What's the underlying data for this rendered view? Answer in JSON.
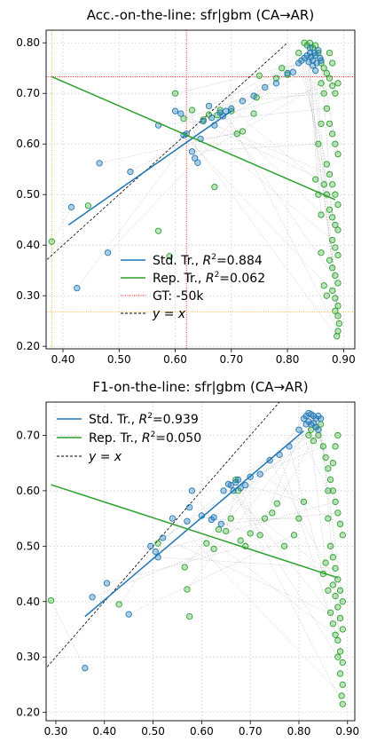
{
  "chart_data": [
    {
      "type": "scatter",
      "title": "Acc.-on-the-line: sfr|gbm  (CA→AR)",
      "xlim": [
        0.37,
        0.92
      ],
      "ylim": [
        0.195,
        0.825
      ],
      "xticks": [
        0.4,
        0.5,
        0.6,
        0.7,
        0.8,
        0.9
      ],
      "yticks": [
        0.2,
        0.3,
        0.4,
        0.5,
        0.6,
        0.7,
        0.8
      ],
      "xtick_labels": [
        "0.40",
        "0.50",
        "0.60",
        "0.70",
        "0.80",
        "0.90"
      ],
      "ytick_labels": [
        "0.20",
        "0.30",
        "0.40",
        "0.50",
        "0.60",
        "0.70",
        "0.80"
      ],
      "grid": true,
      "legend_position": "lower-center",
      "legend": [
        {
          "kind": "line",
          "color": "#1f77b4",
          "pre": "Std. Tr., ",
          "r": "R",
          "sup": "2",
          "post": "=0.884"
        },
        {
          "kind": "line",
          "color": "#2ca02c",
          "pre": "Rep. Tr., ",
          "r": "R",
          "sup": "2",
          "post": "=0.062"
        },
        {
          "kind": "dotted",
          "color": "#ff0000",
          "pre": "GT: -50k"
        },
        {
          "kind": "dashed",
          "color": "#000000",
          "pre": "y = x",
          "math": true
        }
      ],
      "fit_lines": [
        {
          "name": "Std. Tr.",
          "color": "#1f77b4",
          "x": [
            0.41,
            0.7
          ],
          "y": [
            0.44,
            0.665
          ]
        },
        {
          "name": "Rep. Tr.",
          "color": "#2ca02c",
          "x": [
            0.38,
            0.885
          ],
          "y": [
            0.733,
            0.49
          ]
        }
      ],
      "identity": {
        "color": "#000000",
        "from": 0.36,
        "to": 0.8
      },
      "gt_lines": [
        {
          "orientation": "v",
          "value": 0.62,
          "color": "#ff0000"
        },
        {
          "orientation": "h",
          "value": 0.733,
          "color": "#ff0000"
        },
        {
          "orientation": "v",
          "value": 0.38,
          "color": "#ffa500"
        },
        {
          "orientation": "h",
          "value": 0.268,
          "color": "#ffa500"
        }
      ],
      "std_points": [
        [
          0.415,
          0.475
        ],
        [
          0.425,
          0.315
        ],
        [
          0.465,
          0.562
        ],
        [
          0.48,
          0.385
        ],
        [
          0.52,
          0.545
        ],
        [
          0.57,
          0.637
        ],
        [
          0.6,
          0.665
        ],
        [
          0.61,
          0.66
        ],
        [
          0.615,
          0.617
        ],
        [
          0.62,
          0.62
        ],
        [
          0.63,
          0.585
        ],
        [
          0.635,
          0.572
        ],
        [
          0.64,
          0.563
        ],
        [
          0.645,
          0.61
        ],
        [
          0.65,
          0.645
        ],
        [
          0.66,
          0.675
        ],
        [
          0.665,
          0.652
        ],
        [
          0.67,
          0.637
        ],
        [
          0.68,
          0.662
        ],
        [
          0.685,
          0.655
        ],
        [
          0.69,
          0.665
        ],
        [
          0.7,
          0.67
        ],
        [
          0.72,
          0.685
        ],
        [
          0.74,
          0.695
        ],
        [
          0.76,
          0.712
        ],
        [
          0.78,
          0.72
        ],
        [
          0.8,
          0.74
        ],
        [
          0.81,
          0.742
        ],
        [
          0.82,
          0.76
        ],
        [
          0.825,
          0.765
        ],
        [
          0.83,
          0.77
        ],
        [
          0.835,
          0.775
        ],
        [
          0.84,
          0.78
        ],
        [
          0.842,
          0.772
        ],
        [
          0.845,
          0.765
        ],
        [
          0.848,
          0.78
        ],
        [
          0.85,
          0.775
        ],
        [
          0.852,
          0.76
        ],
        [
          0.855,
          0.785
        ],
        [
          0.858,
          0.77
        ],
        [
          0.86,
          0.765
        ],
        [
          0.845,
          0.755
        ],
        [
          0.85,
          0.745
        ],
        [
          0.838,
          0.762
        ],
        [
          0.84,
          0.79
        ]
      ],
      "rep_points": [
        [
          0.38,
          0.407
        ],
        [
          0.445,
          0.478
        ],
        [
          0.57,
          0.428
        ],
        [
          0.59,
          0.378
        ],
        [
          0.6,
          0.7
        ],
        [
          0.615,
          0.65
        ],
        [
          0.63,
          0.667
        ],
        [
          0.65,
          0.648
        ],
        [
          0.66,
          0.658
        ],
        [
          0.67,
          0.515
        ],
        [
          0.675,
          0.657
        ],
        [
          0.68,
          0.667
        ],
        [
          0.7,
          0.665
        ],
        [
          0.71,
          0.62
        ],
        [
          0.72,
          0.625
        ],
        [
          0.74,
          0.66
        ],
        [
          0.745,
          0.692
        ],
        [
          0.75,
          0.735
        ],
        [
          0.78,
          0.73
        ],
        [
          0.79,
          0.75
        ],
        [
          0.8,
          0.737
        ],
        [
          0.82,
          0.78
        ],
        [
          0.83,
          0.8
        ],
        [
          0.835,
          0.795
        ],
        [
          0.84,
          0.8
        ],
        [
          0.845,
          0.79
        ],
        [
          0.85,
          0.795
        ],
        [
          0.855,
          0.78
        ],
        [
          0.86,
          0.76
        ],
        [
          0.865,
          0.75
        ],
        [
          0.87,
          0.74
        ],
        [
          0.875,
          0.73
        ],
        [
          0.88,
          0.715
        ],
        [
          0.885,
          0.7
        ],
        [
          0.89,
          0.72
        ],
        [
          0.87,
          0.67
        ],
        [
          0.875,
          0.64
        ],
        [
          0.88,
          0.62
        ],
        [
          0.885,
          0.6
        ],
        [
          0.89,
          0.58
        ],
        [
          0.87,
          0.56
        ],
        [
          0.875,
          0.54
        ],
        [
          0.88,
          0.52
        ],
        [
          0.885,
          0.5
        ],
        [
          0.89,
          0.48
        ],
        [
          0.875,
          0.47
        ],
        [
          0.88,
          0.455
        ],
        [
          0.885,
          0.44
        ],
        [
          0.89,
          0.43
        ],
        [
          0.88,
          0.41
        ],
        [
          0.885,
          0.395
        ],
        [
          0.89,
          0.38
        ],
        [
          0.875,
          0.37
        ],
        [
          0.88,
          0.355
        ],
        [
          0.885,
          0.34
        ],
        [
          0.89,
          0.325
        ],
        [
          0.88,
          0.31
        ],
        [
          0.885,
          0.295
        ],
        [
          0.89,
          0.28
        ],
        [
          0.885,
          0.27
        ],
        [
          0.89,
          0.26
        ],
        [
          0.892,
          0.245
        ],
        [
          0.89,
          0.23
        ],
        [
          0.888,
          0.22
        ],
        [
          0.86,
          0.385
        ],
        [
          0.865,
          0.32
        ],
        [
          0.87,
          0.3
        ],
        [
          0.855,
          0.5
        ],
        [
          0.86,
          0.46
        ],
        [
          0.85,
          0.53
        ],
        [
          0.855,
          0.6
        ],
        [
          0.865,
          0.52
        ],
        [
          0.87,
          0.5
        ],
        [
          0.86,
          0.64
        ],
        [
          0.88,
          0.76
        ],
        [
          0.875,
          0.78
        ],
        [
          0.865,
          0.7
        ],
        [
          0.86,
          0.72
        ]
      ]
    },
    {
      "type": "scatter",
      "title": "F1-on-the-line: sfr|gbm  (CA→AR)",
      "xlim": [
        0.28,
        0.915
      ],
      "ylim": [
        0.185,
        0.76
      ],
      "xticks": [
        0.3,
        0.4,
        0.5,
        0.6,
        0.7,
        0.8,
        0.9
      ],
      "yticks": [
        0.2,
        0.3,
        0.4,
        0.5,
        0.6,
        0.7
      ],
      "xtick_labels": [
        "0.30",
        "0.40",
        "0.50",
        "0.60",
        "0.70",
        "0.80",
        "0.90"
      ],
      "ytick_labels": [
        "0.20",
        "0.30",
        "0.40",
        "0.50",
        "0.60",
        "0.70"
      ],
      "grid": true,
      "legend_position": "upper-left",
      "legend": [
        {
          "kind": "line",
          "color": "#1f77b4",
          "pre": "Std. Tr., ",
          "r": "R",
          "sup": "2",
          "post": "=0.939"
        },
        {
          "kind": "line",
          "color": "#2ca02c",
          "pre": "Rep. Tr., ",
          "r": "R",
          "sup": "2",
          "post": "=0.050"
        },
        {
          "kind": "dashed",
          "color": "#000000",
          "pre": "y = x",
          "math": true
        }
      ],
      "fit_lines": [
        {
          "name": "Std. Tr.",
          "color": "#1f77b4",
          "x": [
            0.36,
            0.81
          ],
          "y": [
            0.373,
            0.708
          ]
        },
        {
          "name": "Rep. Tr.",
          "color": "#2ca02c",
          "x": [
            0.29,
            0.88
          ],
          "y": [
            0.611,
            0.443
          ]
        }
      ],
      "identity": {
        "color": "#000000",
        "from": 0.27,
        "to": 0.8
      },
      "gt_lines": [],
      "std_points": [
        [
          0.36,
          0.28
        ],
        [
          0.375,
          0.408
        ],
        [
          0.405,
          0.433
        ],
        [
          0.45,
          0.377
        ],
        [
          0.495,
          0.5
        ],
        [
          0.505,
          0.49
        ],
        [
          0.51,
          0.48
        ],
        [
          0.52,
          0.515
        ],
        [
          0.54,
          0.55
        ],
        [
          0.57,
          0.545
        ],
        [
          0.575,
          0.57
        ],
        [
          0.58,
          0.6
        ],
        [
          0.6,
          0.555
        ],
        [
          0.62,
          0.548
        ],
        [
          0.625,
          0.552
        ],
        [
          0.64,
          0.54
        ],
        [
          0.645,
          0.6
        ],
        [
          0.655,
          0.612
        ],
        [
          0.66,
          0.61
        ],
        [
          0.665,
          0.6
        ],
        [
          0.67,
          0.615
        ],
        [
          0.675,
          0.62
        ],
        [
          0.68,
          0.605
        ],
        [
          0.69,
          0.61
        ],
        [
          0.7,
          0.625
        ],
        [
          0.72,
          0.63
        ],
        [
          0.74,
          0.655
        ],
        [
          0.76,
          0.665
        ],
        [
          0.78,
          0.68
        ],
        [
          0.8,
          0.71
        ],
        [
          0.81,
          0.73
        ],
        [
          0.815,
          0.735
        ],
        [
          0.82,
          0.74
        ],
        [
          0.825,
          0.738
        ],
        [
          0.83,
          0.735
        ],
        [
          0.835,
          0.73
        ],
        [
          0.84,
          0.735
        ],
        [
          0.845,
          0.73
        ],
        [
          0.82,
          0.725
        ],
        [
          0.825,
          0.72
        ],
        [
          0.83,
          0.722
        ],
        [
          0.835,
          0.715
        ],
        [
          0.84,
          0.71
        ],
        [
          0.815,
          0.72
        ]
      ],
      "rep_points": [
        [
          0.29,
          0.402
        ],
        [
          0.43,
          0.395
        ],
        [
          0.51,
          0.505
        ],
        [
          0.565,
          0.462
        ],
        [
          0.57,
          0.422
        ],
        [
          0.575,
          0.373
        ],
        [
          0.61,
          0.505
        ],
        [
          0.625,
          0.495
        ],
        [
          0.635,
          0.53
        ],
        [
          0.65,
          0.527
        ],
        [
          0.66,
          0.55
        ],
        [
          0.67,
          0.62
        ],
        [
          0.675,
          0.6
        ],
        [
          0.68,
          0.51
        ],
        [
          0.69,
          0.5
        ],
        [
          0.7,
          0.523
        ],
        [
          0.72,
          0.52
        ],
        [
          0.73,
          0.55
        ],
        [
          0.745,
          0.56
        ],
        [
          0.755,
          0.577
        ],
        [
          0.77,
          0.5
        ],
        [
          0.79,
          0.52
        ],
        [
          0.8,
          0.55
        ],
        [
          0.81,
          0.58
        ],
        [
          0.82,
          0.7
        ],
        [
          0.825,
          0.71
        ],
        [
          0.83,
          0.69
        ],
        [
          0.835,
          0.715
        ],
        [
          0.84,
          0.7
        ],
        [
          0.845,
          0.72
        ],
        [
          0.85,
          0.68
        ],
        [
          0.855,
          0.66
        ],
        [
          0.86,
          0.64
        ],
        [
          0.865,
          0.62
        ],
        [
          0.87,
          0.6
        ],
        [
          0.875,
          0.58
        ],
        [
          0.88,
          0.56
        ],
        [
          0.885,
          0.54
        ],
        [
          0.89,
          0.52
        ],
        [
          0.86,
          0.55
        ],
        [
          0.865,
          0.5
        ],
        [
          0.87,
          0.48
        ],
        [
          0.875,
          0.46
        ],
        [
          0.88,
          0.44
        ],
        [
          0.885,
          0.42
        ],
        [
          0.89,
          0.4
        ],
        [
          0.87,
          0.43
        ],
        [
          0.875,
          0.41
        ],
        [
          0.88,
          0.39
        ],
        [
          0.885,
          0.37
        ],
        [
          0.89,
          0.35
        ],
        [
          0.88,
          0.33
        ],
        [
          0.885,
          0.31
        ],
        [
          0.89,
          0.29
        ],
        [
          0.885,
          0.27
        ],
        [
          0.89,
          0.25
        ],
        [
          0.888,
          0.23
        ],
        [
          0.89,
          0.215
        ],
        [
          0.85,
          0.45
        ],
        [
          0.855,
          0.47
        ],
        [
          0.86,
          0.42
        ],
        [
          0.865,
          0.38
        ],
        [
          0.87,
          0.36
        ],
        [
          0.875,
          0.34
        ],
        [
          0.88,
          0.3
        ],
        [
          0.86,
          0.6
        ],
        [
          0.87,
          0.65
        ],
        [
          0.875,
          0.68
        ],
        [
          0.88,
          0.7
        ]
      ]
    }
  ]
}
